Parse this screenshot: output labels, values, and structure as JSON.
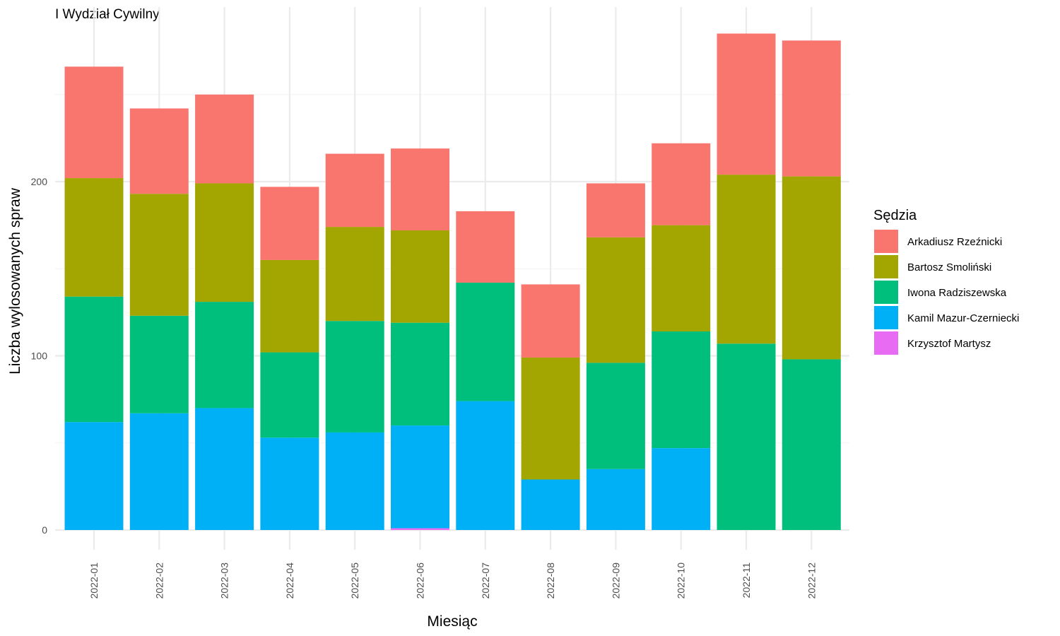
{
  "chart_data": {
    "type": "bar",
    "stacked": true,
    "title": "I Wydział Cywilny",
    "xlabel": "Miesiąc",
    "ylabel": "Liczba wylosowanych spraw",
    "ylim": [
      0,
      285
    ],
    "yticks": [
      0,
      100,
      200
    ],
    "grid": true,
    "legend": {
      "title": "Sędzia",
      "placement": "right"
    },
    "categories": [
      "2022-01",
      "2022-02",
      "2022-03",
      "2022-04",
      "2022-05",
      "2022-06",
      "2022-07",
      "2022-08",
      "2022-09",
      "2022-10",
      "2022-11",
      "2022-12"
    ],
    "series": [
      {
        "name": "Krzysztof Martysz",
        "color": "#E76BF3",
        "values": [
          0,
          0,
          0,
          0,
          0,
          1,
          0,
          0,
          0,
          0,
          0,
          0
        ]
      },
      {
        "name": "Kamil Mazur-Czerniecki",
        "color": "#00B0F6",
        "values": [
          62,
          67,
          70,
          53,
          56,
          59,
          74,
          29,
          35,
          47,
          0,
          0
        ]
      },
      {
        "name": "Iwona Radziszewska",
        "color": "#00BF7D",
        "values": [
          72,
          56,
          61,
          49,
          64,
          59,
          68,
          0,
          61,
          67,
          107,
          98
        ]
      },
      {
        "name": "Bartosz Smoliński",
        "color": "#A3A500",
        "values": [
          68,
          70,
          68,
          53,
          54,
          53,
          0,
          70,
          72,
          61,
          97,
          105
        ]
      },
      {
        "name": "Arkadiusz Rzeźnicki",
        "color": "#F8766D",
        "values": [
          64,
          49,
          51,
          42,
          42,
          47,
          41,
          42,
          31,
          47,
          81,
          78
        ]
      }
    ],
    "legend_order": [
      "Arkadiusz Rzeźnicki",
      "Bartosz Smoliński",
      "Iwona Radziszewska",
      "Kamil Mazur-Czerniecki",
      "Krzysztof Martysz"
    ]
  }
}
